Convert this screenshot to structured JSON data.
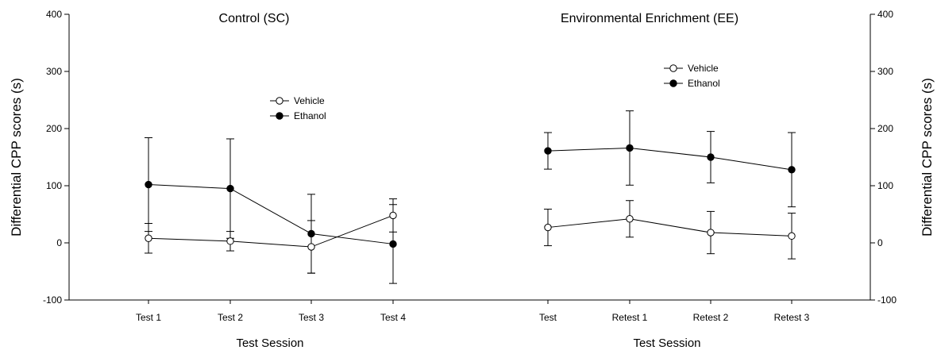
{
  "chart_data": [
    {
      "type": "line",
      "title": "Control (SC)",
      "xlabel": "Test Session",
      "ylabel": "Differential CPP scores (s)",
      "ylim": [
        -100,
        400
      ],
      "yticks": [
        -100,
        0,
        100,
        200,
        300,
        400
      ],
      "categories": [
        "Test 1",
        "Test 2",
        "Test 3",
        "Test 4"
      ],
      "series": [
        {
          "name": "Vehicle",
          "marker": "open-circle",
          "values": [
            8,
            3,
            -7,
            48
          ],
          "errors": [
            26,
            17,
            46,
            29
          ]
        },
        {
          "name": "Ethanol",
          "marker": "filled-circle",
          "values": [
            102,
            95,
            16,
            -2
          ],
          "errors": [
            82,
            87,
            69,
            69
          ]
        }
      ],
      "legend": "center",
      "grid": false
    },
    {
      "type": "line",
      "title": "Environmental Enrichment (EE)",
      "xlabel": "Test Session",
      "ylabel": "Differential CPP scores (s)",
      "ylim": [
        -100,
        400
      ],
      "yticks": [
        -100,
        0,
        100,
        200,
        300,
        400
      ],
      "categories": [
        "Test",
        "Retest 1",
        "Retest 2",
        "Retest 3"
      ],
      "series": [
        {
          "name": "Vehicle",
          "marker": "open-circle",
          "values": [
            27,
            42,
            18,
            12
          ],
          "errors": [
            32,
            32,
            37,
            40
          ]
        },
        {
          "name": "Ethanol",
          "marker": "filled-circle",
          "values": [
            161,
            166,
            150,
            128
          ],
          "errors": [
            32,
            65,
            45,
            65
          ]
        }
      ],
      "legend": "top-center",
      "grid": false
    }
  ]
}
